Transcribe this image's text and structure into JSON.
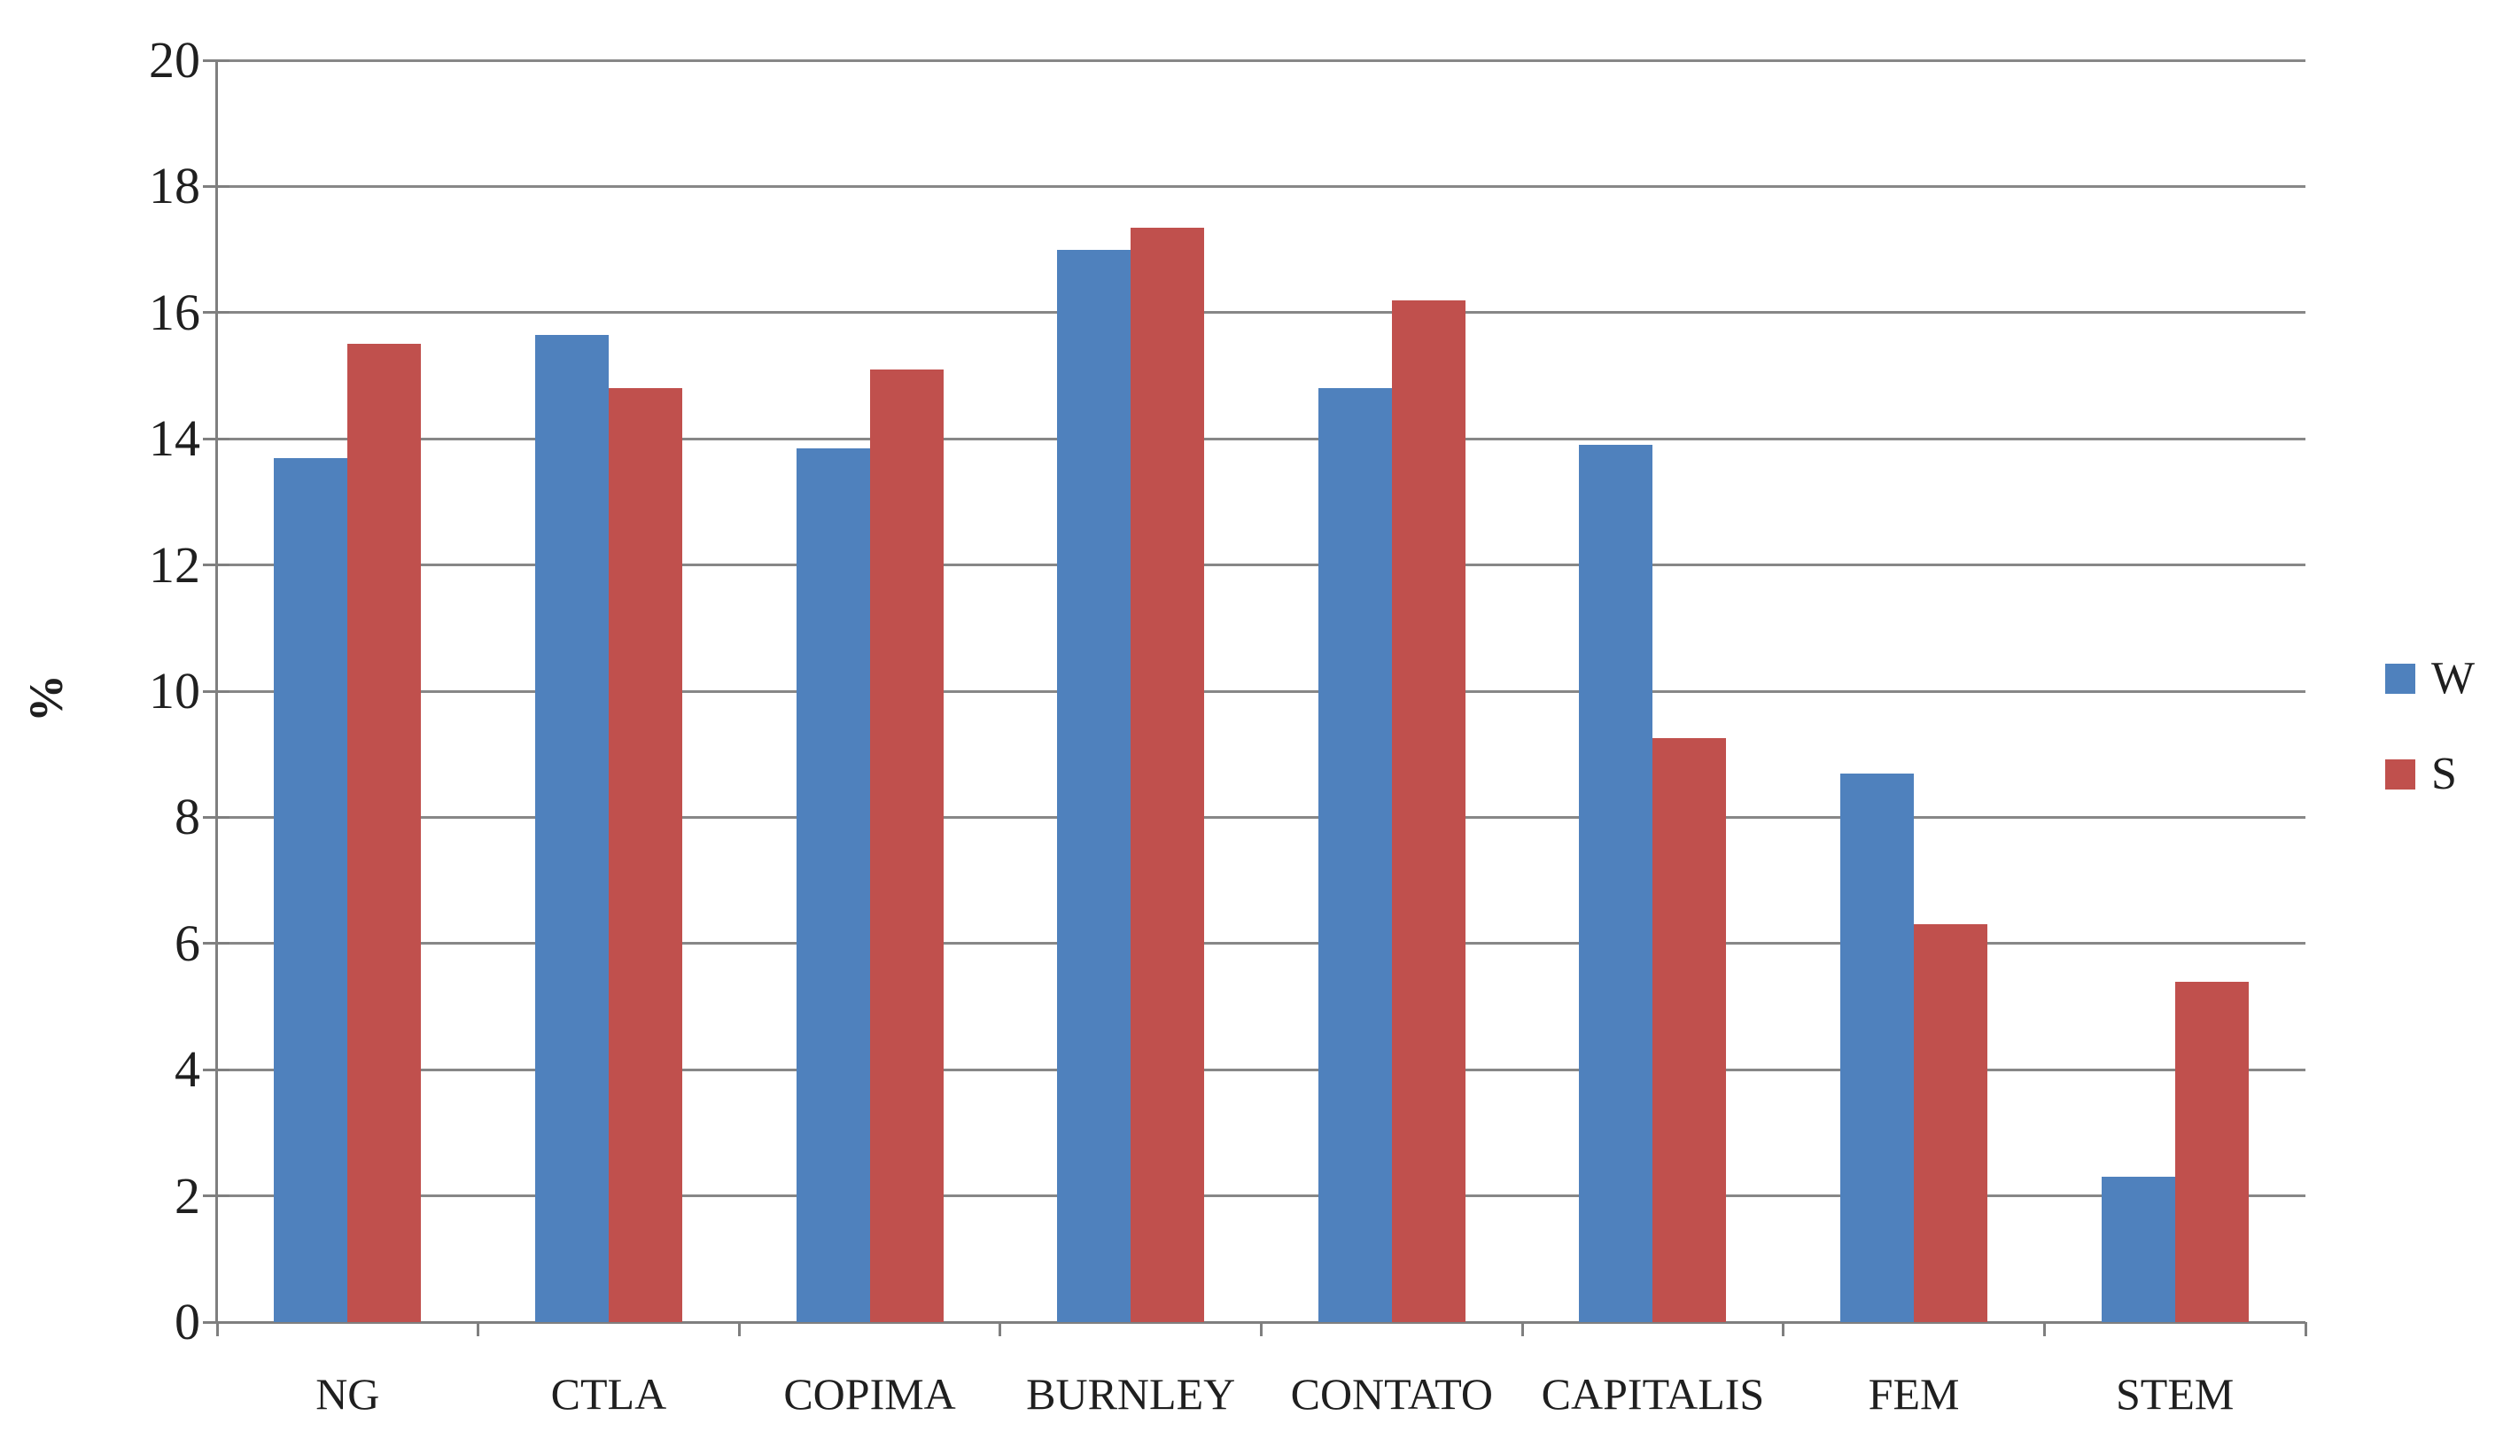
{
  "chart": {
    "background": "#ffffff",
    "grid_color": "#878787",
    "axis_color": "#7f7f7f",
    "text_color": "#1f1f1f"
  },
  "chart_data": {
    "type": "bar",
    "title": "",
    "categories": [
      "NG",
      "CTLA",
      "COPIMA",
      "BURNLEY",
      "CONTATO",
      "CAPITALIS",
      "FEM",
      "STEM"
    ],
    "series": [
      {
        "name": "W",
        "color": "#4f81bd",
        "values": [
          13.7,
          15.65,
          13.85,
          17.0,
          14.8,
          13.9,
          8.7,
          2.3
        ]
      },
      {
        "name": "S",
        "color": "#c0504d",
        "values": [
          15.5,
          14.8,
          15.1,
          17.35,
          16.2,
          9.25,
          6.3,
          5.4
        ]
      }
    ],
    "xlabel": "",
    "ylabel": "%",
    "ylim": [
      0,
      20
    ],
    "yticks": [
      0,
      2,
      4,
      6,
      8,
      10,
      12,
      14,
      16,
      18,
      20
    ],
    "grid": true,
    "legend_position": "right"
  }
}
